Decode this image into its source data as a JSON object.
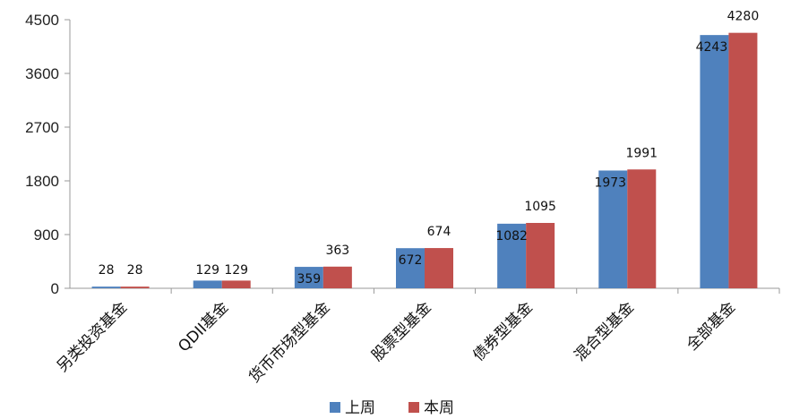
{
  "chart_data": {
    "type": "bar",
    "categories": [
      "另类投资基金",
      "QDII基金",
      "货币市场型基金",
      "股票型基金",
      "债券型基金",
      "混合型基金",
      "全部基金"
    ],
    "series": [
      {
        "name": "上周",
        "color": "#4f81bd",
        "values": [
          28,
          129,
          359,
          672,
          1082,
          1973,
          4243
        ]
      },
      {
        "name": "本周",
        "color": "#c0504d",
        "values": [
          28,
          129,
          363,
          674,
          1095,
          1991,
          4280
        ]
      }
    ],
    "ylim": [
      0,
      4500
    ],
    "yticks": [
      "0",
      "900",
      "1800",
      "2700",
      "3600",
      "4500"
    ],
    "grid": false,
    "legend_position": "bottom"
  }
}
